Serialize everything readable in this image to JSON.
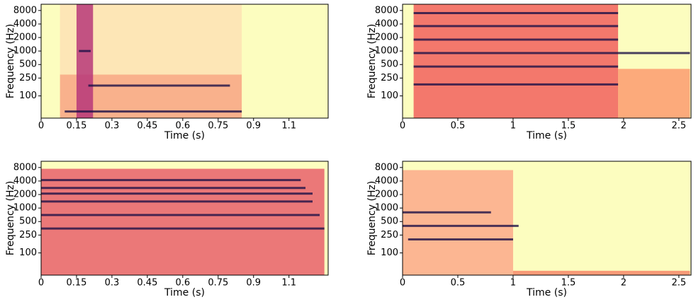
{
  "chart_data": [
    {
      "type": "spectrogram",
      "xlabel": "Time (s)",
      "ylabel": "Frequency (Hz)",
      "log_y": true,
      "background": "#fcfdbf",
      "band_color": "#1d1147",
      "xlim": [
        0,
        1.216
      ],
      "xticks": [
        0,
        0.15,
        0.3,
        0.45,
        0.6,
        0.75,
        0.9,
        {
          "value": 1.05,
          "label": "1.1"
        }
      ],
      "ylim": [
        32,
        11025
      ],
      "yticks": [
        100,
        250,
        500,
        1000,
        2000,
        4000,
        8000
      ],
      "regions": [
        {
          "start": 0.08,
          "end": 0.85,
          "low": 32,
          "high": 300,
          "color": "#f8a383"
        },
        {
          "start": 0.08,
          "end": 0.85,
          "low": 300,
          "high": 11025,
          "color": "#fde2b4"
        },
        {
          "start": 0.15,
          "end": 0.22,
          "low": 32,
          "high": 11025,
          "color": "#b73779"
        }
      ],
      "bands": [
        {
          "start": 0.16,
          "end": 0.21,
          "frequency": 1000
        },
        {
          "start": 0.2,
          "end": 0.8,
          "frequency": 170
        },
        {
          "start": 0.1,
          "end": 0.85,
          "frequency": 45
        }
      ]
    },
    {
      "type": "spectrogram",
      "xlabel": "Time (s)",
      "ylabel": "Frequency (Hz)",
      "log_y": true,
      "background": "#fcfdbf",
      "band_color": "#1d1147",
      "xlim": [
        0,
        2.61
      ],
      "xticks": [
        0,
        0.5,
        1,
        1.5,
        2,
        2.5
      ],
      "ylim": [
        32,
        11025
      ],
      "yticks": [
        100,
        250,
        500,
        1000,
        2000,
        4000,
        8000
      ],
      "regions": [
        {
          "start": 0.1,
          "end": 1.95,
          "low": 32,
          "high": 11025,
          "color": "#f1605d"
        },
        {
          "start": 1.95,
          "end": 2.6,
          "low": 32,
          "high": 400,
          "color": "#fb9b6e"
        }
      ],
      "bands": [
        {
          "start": 0.1,
          "end": 2.6,
          "frequency": 900
        },
        {
          "start": 0.1,
          "end": 1.95,
          "frequency": 180
        },
        {
          "start": 0.1,
          "end": 1.95,
          "frequency": 450
        },
        {
          "start": 0.1,
          "end": 1.95,
          "frequency": 1800
        },
        {
          "start": 0.1,
          "end": 1.95,
          "frequency": 3600
        },
        {
          "start": 0.1,
          "end": 1.95,
          "frequency": 7000
        }
      ]
    },
    {
      "type": "spectrogram",
      "xlabel": "Time (s)",
      "ylabel": "Frequency (Hz)",
      "log_y": true,
      "background": "#fcfdbf",
      "band_color": "#1d1147",
      "xlim": [
        0,
        1.216
      ],
      "xticks": [
        0,
        0.15,
        0.3,
        0.45,
        0.6,
        0.75,
        0.9,
        {
          "value": 1.05,
          "label": "1.1"
        }
      ],
      "ylim": [
        32,
        11025
      ],
      "yticks": [
        100,
        250,
        500,
        1000,
        2000,
        4000,
        8000
      ],
      "regions": [
        {
          "start": 0,
          "end": 1.2,
          "low": 32,
          "high": 7500,
          "color": "#e8606b"
        }
      ],
      "bands": [
        {
          "start": 0,
          "end": 1.2,
          "frequency": 350
        },
        {
          "start": 0,
          "end": 1.18,
          "frequency": 700
        },
        {
          "start": 0,
          "end": 1.15,
          "frequency": 1400
        },
        {
          "start": 0,
          "end": 1.15,
          "frequency": 2100
        },
        {
          "start": 0,
          "end": 1.12,
          "frequency": 2800
        },
        {
          "start": 0,
          "end": 1.1,
          "frequency": 4200
        }
      ]
    },
    {
      "type": "spectrogram",
      "xlabel": "Time (s)",
      "ylabel": "Frequency (Hz)",
      "log_y": true,
      "background": "#fcfdbf",
      "band_color": "#1d1147",
      "xlim": [
        0,
        2.61
      ],
      "xticks": [
        0,
        0.5,
        1,
        1.5,
        2,
        2.5
      ],
      "ylim": [
        32,
        11025
      ],
      "yticks": [
        100,
        250,
        500,
        1000,
        2000,
        4000,
        8000
      ],
      "regions": [
        {
          "start": 0,
          "end": 1.0,
          "low": 32,
          "high": 7000,
          "color": "#fca98a"
        },
        {
          "start": 1.0,
          "end": 2.6,
          "low": 32,
          "high": 40,
          "color": "#f7886a"
        }
      ],
      "bands": [
        {
          "start": 0,
          "end": 1.05,
          "frequency": 400
        },
        {
          "start": 0.05,
          "end": 1.0,
          "frequency": 200
        },
        {
          "start": 0,
          "end": 0.8,
          "frequency": 800
        }
      ]
    }
  ]
}
